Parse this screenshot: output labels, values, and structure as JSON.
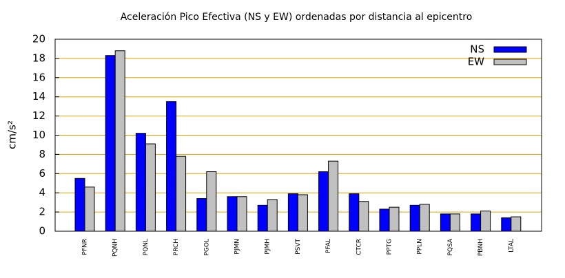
{
  "chart_data": {
    "type": "bar",
    "title": "Aceleración Pico Efectiva (NS y EW) ordenadas por distancia al epicentro",
    "ylabel": "cm/s²",
    "categories": [
      "PFNR",
      "PQNH",
      "PQNL",
      "PRCH",
      "PGOL",
      "PJMN",
      "PJMH",
      "PSVT",
      "PFAL",
      "CTCR",
      "PPTG",
      "PPLN",
      "PQSA",
      "PBNH",
      "LTAL"
    ],
    "series": [
      {
        "name": "NS",
        "color": "#0000ff",
        "values": [
          5.5,
          18.3,
          10.2,
          13.5,
          3.4,
          3.6,
          2.7,
          3.9,
          6.2,
          3.9,
          2.3,
          2.7,
          1.8,
          1.8,
          1.4
        ]
      },
      {
        "name": "EW",
        "color": "#c0c0c0",
        "values": [
          4.6,
          18.8,
          9.1,
          7.8,
          6.2,
          3.6,
          3.3,
          3.8,
          7.3,
          3.1,
          2.5,
          2.8,
          1.8,
          2.1,
          1.5
        ]
      }
    ],
    "ylim": [
      0,
      20
    ],
    "yticks": [
      0,
      2,
      4,
      6,
      8,
      10,
      12,
      14,
      16,
      18,
      20
    ],
    "grid": true,
    "grid_color": "#e0a000",
    "legend": "top-right"
  }
}
